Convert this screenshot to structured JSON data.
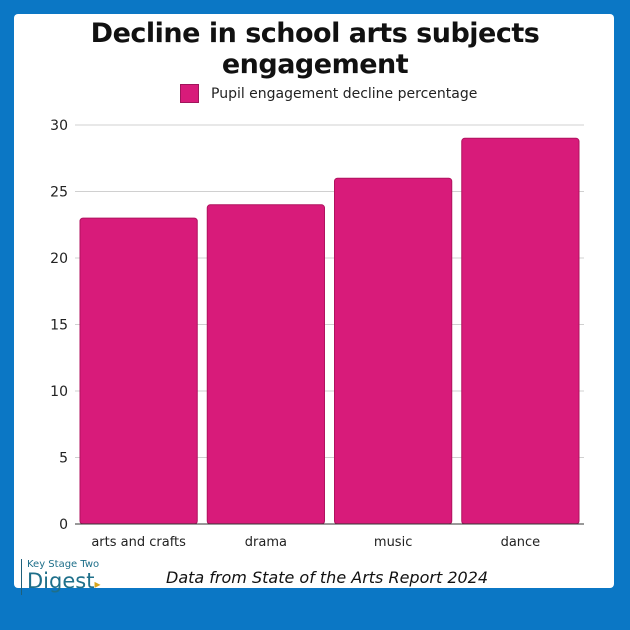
{
  "chart_data": {
    "type": "bar",
    "title": "Decline in school arts subjects engagement",
    "categories": [
      "arts and crafts",
      "drama",
      "music",
      "dance"
    ],
    "series": [
      {
        "name": "Pupil engagement decline percentage",
        "values": [
          23,
          24,
          26,
          29
        ],
        "color": "#d81b7a"
      }
    ],
    "yticks": [
      0,
      5,
      10,
      15,
      20,
      25,
      30
    ],
    "ylim": [
      0,
      30
    ],
    "grid": true,
    "legend": "top-center"
  },
  "footer": "Data from State of the Arts Report 2024",
  "logo": {
    "line1": "Key Stage Two",
    "line2": "Digest"
  },
  "colors": {
    "border": "#0b77c5",
    "bar": "#d81b7a"
  }
}
